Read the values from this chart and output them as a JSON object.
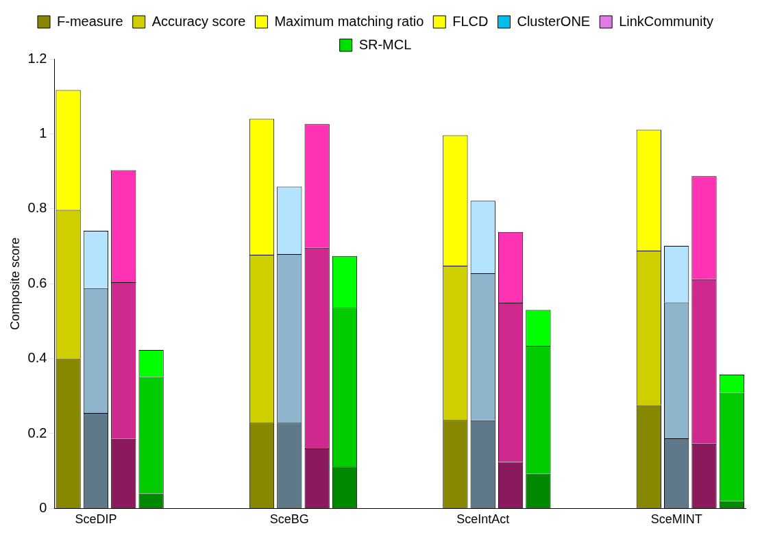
{
  "chart_data": {
    "type": "bar",
    "stacked": true,
    "ylabel": "Composite score",
    "categories": [
      null,
      "SceDIP",
      null,
      null,
      null,
      null,
      null,
      null,
      "SceBG",
      null,
      null,
      null,
      null,
      null,
      null,
      "SceIntAct",
      null,
      null,
      null,
      null,
      null,
      null,
      "SceMINT",
      null,
      null
    ],
    "ylim": [
      0,
      1.2
    ],
    "yticks": [
      0,
      0.2,
      0.4,
      0.6,
      0.8,
      1,
      1.2
    ],
    "grid": false,
    "legend": "top",
    "series": [
      {
        "name": "F-measure",
        "color": "#404040",
        "colors": [
          "#888800",
          "#5f798b",
          "#8b1a5c",
          "#008800",
          null,
          null,
          null,
          "#888800",
          "#5f798b",
          "#8b1a5c",
          "#008800",
          null,
          null,
          null,
          "#888800",
          "#5f798b",
          "#8b1a5c",
          "#008800",
          null,
          null,
          null,
          "#888800",
          "#5f798b",
          "#8b1a5c",
          "#008800"
        ],
        "values": [
          0.4,
          0.255,
          0.186,
          0.04,
          null,
          null,
          null,
          0.229,
          0.229,
          0.16,
          0.112,
          null,
          null,
          null,
          0.236,
          0.235,
          0.124,
          0.093,
          null,
          null,
          null,
          0.276,
          0.187,
          0.173,
          0.02
        ]
      },
      {
        "name": "Accuracy score",
        "color": "#707070",
        "colors": [
          "#cfcf00",
          "#8fb5cc",
          "#cf288e",
          "#00cc00",
          null,
          null,
          null,
          "#cfcf00",
          "#8fb5cc",
          "#cf288e",
          "#00cc00",
          null,
          null,
          null,
          "#cfcf00",
          "#8fb5cc",
          "#cf288e",
          "#00cc00",
          null,
          null,
          null,
          "#cfcf00",
          "#8fb5cc",
          "#cf288e",
          "#00cc00"
        ],
        "values": [
          0.397,
          0.333,
          0.418,
          0.311,
          null,
          null,
          null,
          0.448,
          0.45,
          0.536,
          0.424,
          null,
          null,
          null,
          0.412,
          0.393,
          0.425,
          0.341,
          null,
          null,
          null,
          0.412,
          0.363,
          0.439,
          0.289
        ]
      },
      {
        "name": "Maximum matching ratio",
        "color": "#a0a0a0",
        "colors": [
          "#ffff00",
          "#b3e3ff",
          "#ff33b3",
          "#00ff00",
          null,
          null,
          null,
          "#ffff00",
          "#b3e3ff",
          "#ff33b3",
          "#00ff00",
          null,
          null,
          null,
          "#ffff00",
          "#b3e3ff",
          "#ff33b3",
          "#00ff00",
          null,
          null,
          null,
          "#ffff00",
          "#b3e3ff",
          "#ff33b3",
          "#00ff00"
        ],
        "values": [
          0.32,
          0.153,
          0.299,
          0.072,
          null,
          null,
          null,
          0.363,
          0.18,
          0.33,
          0.138,
          null,
          null,
          null,
          0.348,
          0.193,
          0.189,
          0.096,
          null,
          null,
          null,
          0.323,
          0.151,
          0.275,
          0.048
        ]
      },
      {
        "name": "FLCD",
        "color": "#ffff00",
        "values": [
          null,
          null,
          null,
          null,
          null,
          null,
          null,
          null,
          null,
          null,
          null,
          null,
          null,
          null,
          null,
          null,
          null,
          null,
          null,
          null,
          null,
          null,
          null,
          null,
          null
        ]
      },
      {
        "name": "ClusterONE",
        "color": "#00bfef",
        "values": [
          null,
          null,
          null,
          null,
          null,
          null,
          null,
          null,
          null,
          null,
          null,
          null,
          null,
          null,
          null,
          null,
          null,
          null,
          null,
          null,
          null,
          null,
          null,
          null,
          null
        ]
      },
      {
        "name": "LinkCommunity",
        "color": "#e07ae6",
        "values": [
          null,
          null,
          null,
          null,
          null,
          null,
          null,
          null,
          null,
          null,
          null,
          null,
          null,
          null,
          null,
          null,
          null,
          null,
          null,
          null,
          null,
          null,
          null,
          null,
          null
        ]
      },
      {
        "name": "SR-MCL",
        "color": "#00e000",
        "values": [
          null,
          null,
          null,
          null,
          null,
          null,
          null,
          null,
          null,
          null,
          null,
          null,
          null,
          null,
          null,
          null,
          null,
          null,
          null,
          null,
          null,
          null,
          null,
          null,
          null
        ]
      }
    ]
  }
}
